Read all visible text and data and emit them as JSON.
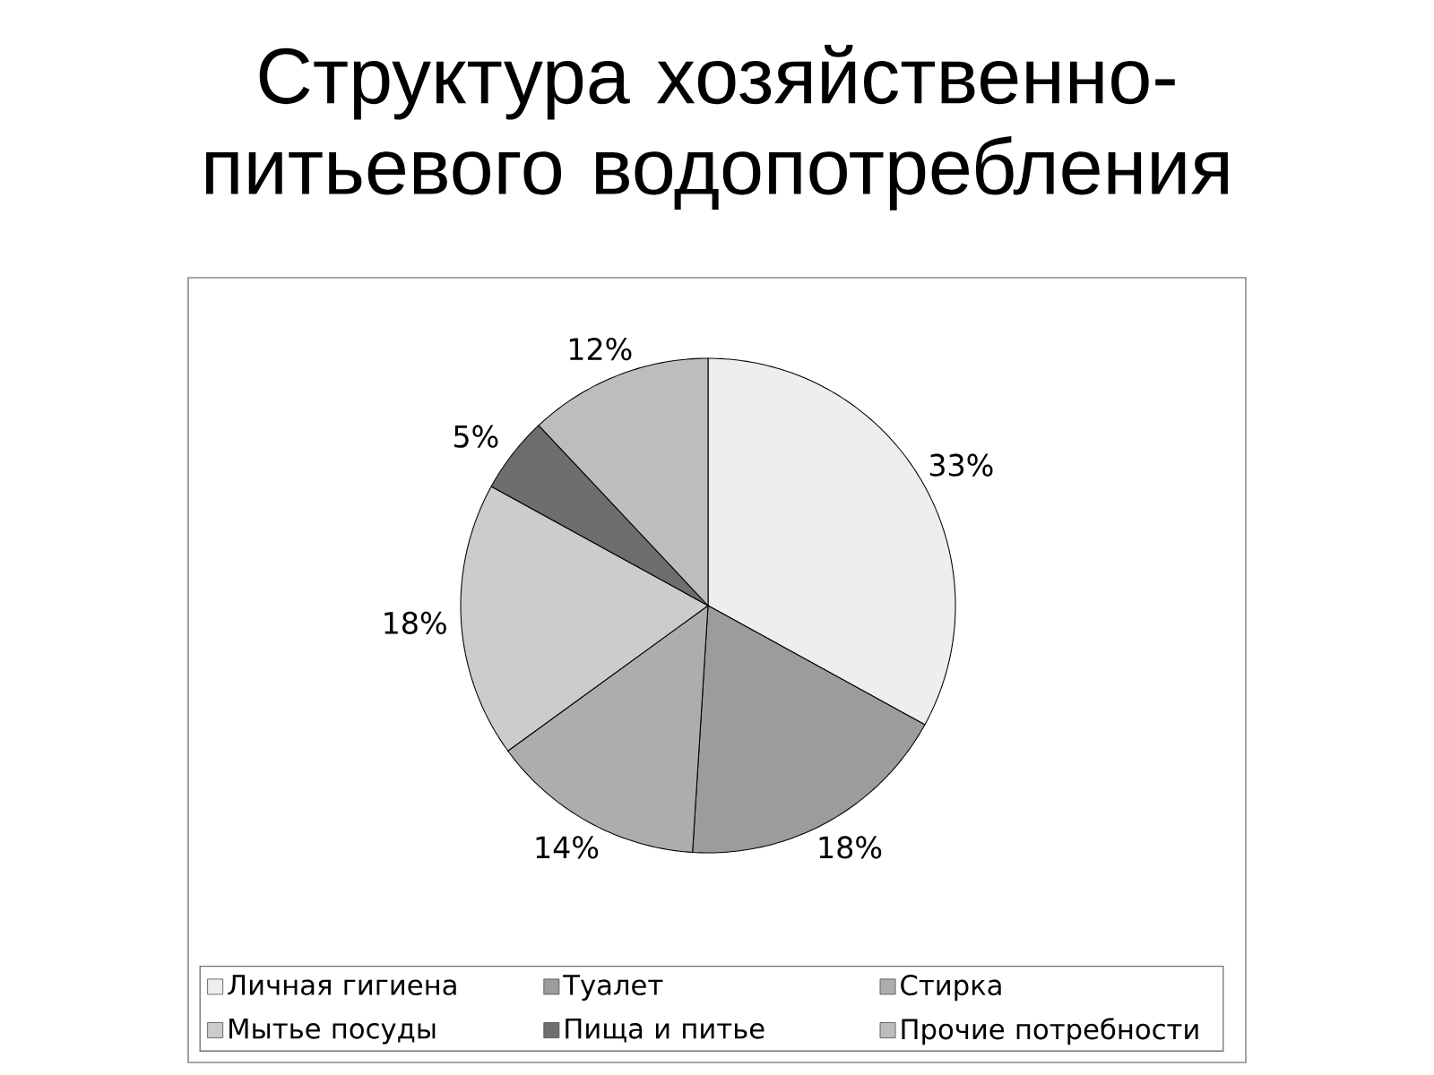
{
  "chart_data": {
    "type": "pie",
    "title": "Структура хозяйственно-питьевого водопотребления",
    "categories": [
      "Личная гигиена",
      "Туалет",
      "Стирка",
      "Мытье посуды",
      "Пища и питье",
      "Прочие потребности"
    ],
    "values": [
      33,
      18,
      14,
      18,
      5,
      12
    ],
    "value_labels": [
      "33%",
      "18%",
      "14%",
      "18%",
      "5%",
      "12%"
    ],
    "colors": [
      "#eeeeee",
      "#9c9c9c",
      "#adadad",
      "#cccccc",
      "#6e6e6e",
      "#bdbdbd"
    ],
    "legend": "bottom"
  }
}
